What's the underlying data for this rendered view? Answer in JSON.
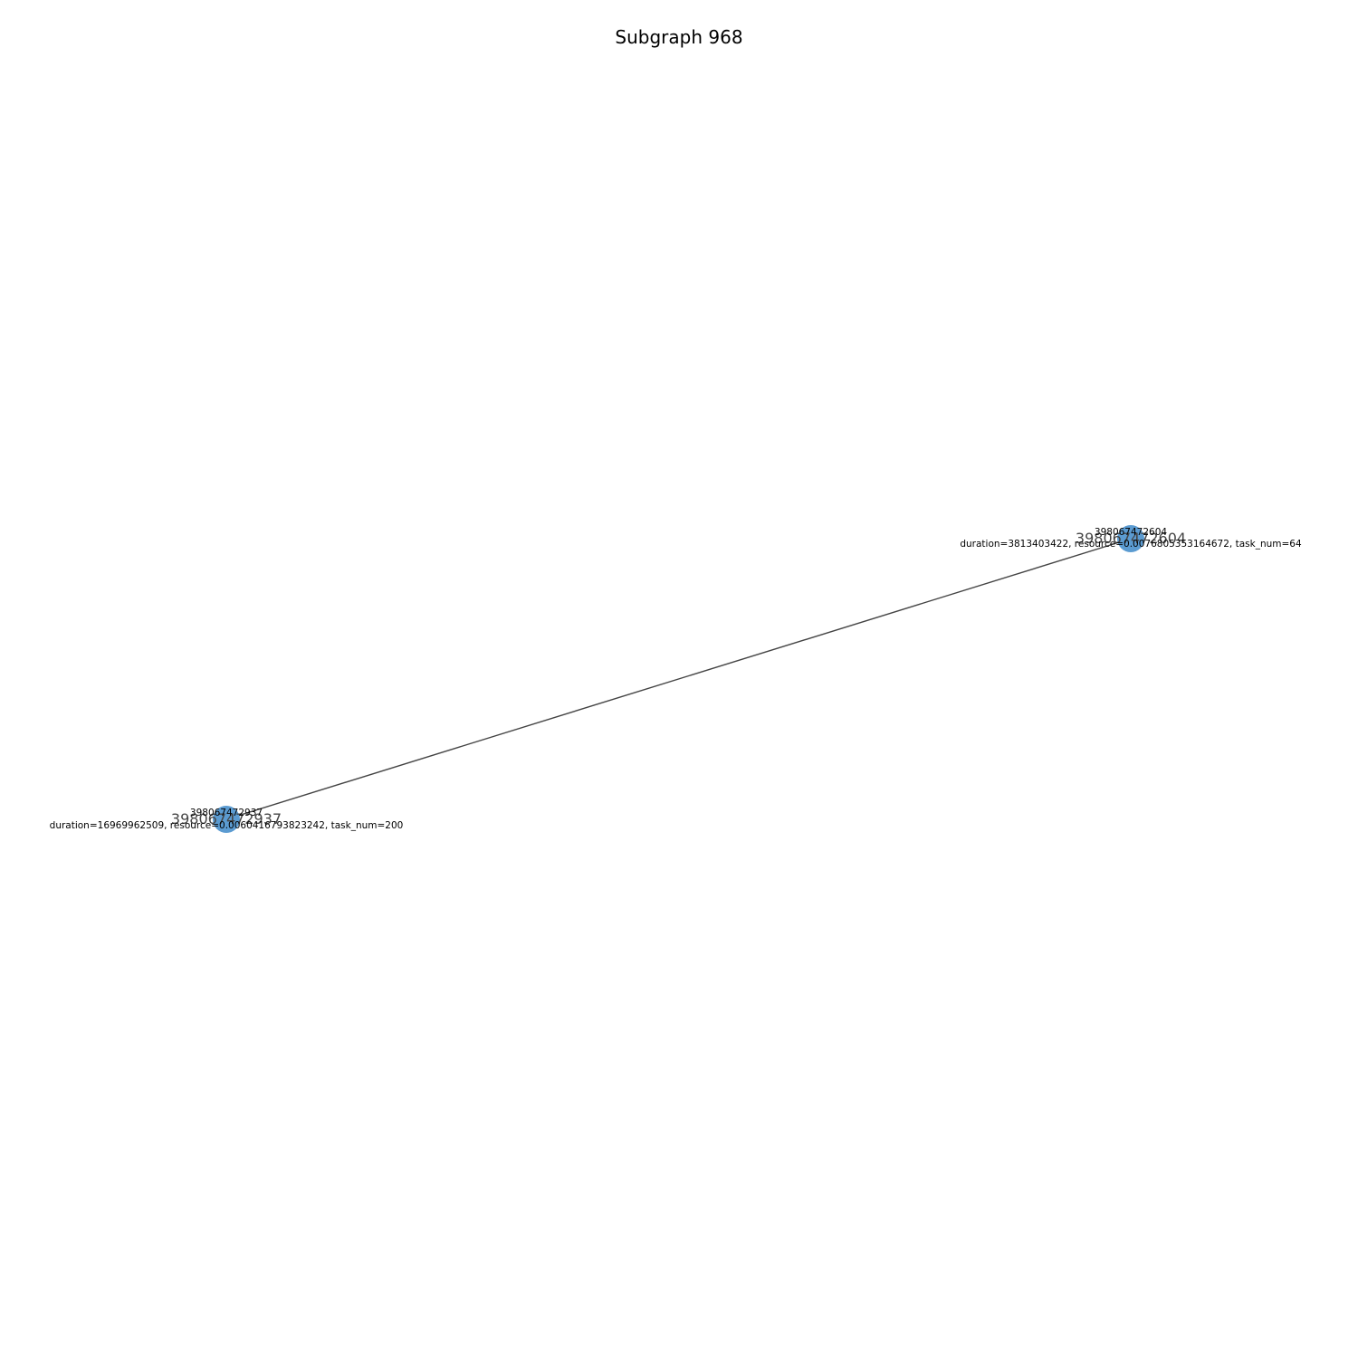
{
  "title": "Subgraph 968",
  "colors": {
    "node": "#5b9bd1",
    "edge": "#444444",
    "background": "#ffffff"
  },
  "nodes": [
    {
      "id": "398067472604",
      "label": "398067472604",
      "attr_label": "duration=3813403422, resource=0.0076805353164672, task_num=64"
    },
    {
      "id": "398067472937",
      "label": "398067472937",
      "attr_label": "duration=16969962509, resource=0.0060416793823242, task_num=200"
    }
  ],
  "edges": [
    {
      "source": "398067472604",
      "target": "398067472937"
    }
  ]
}
